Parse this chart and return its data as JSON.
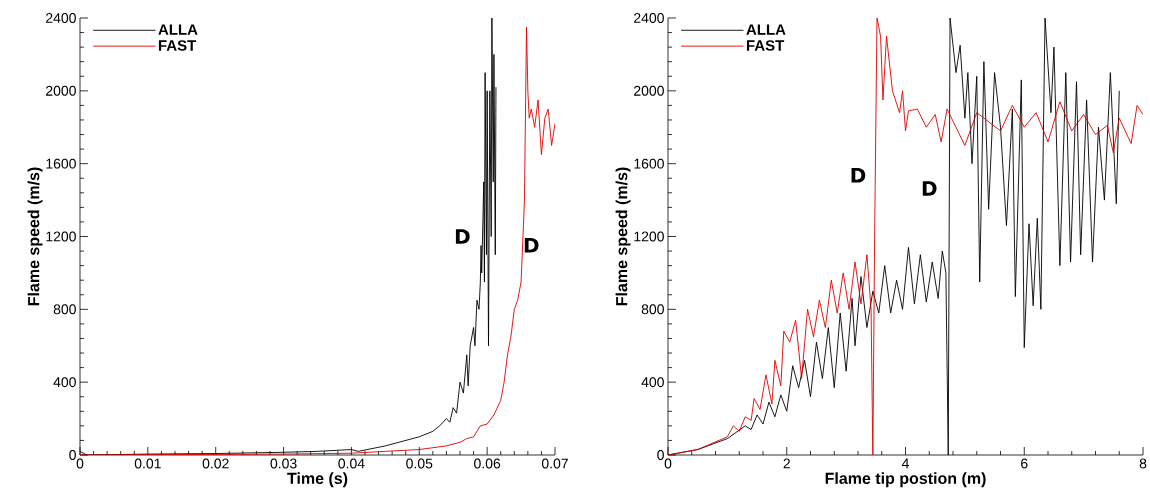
{
  "chart_data": [
    {
      "type": "line",
      "xlabel": "Time (s)",
      "ylabel": "Flame speed (m/s)",
      "xlim": [
        0,
        0.07
      ],
      "ylim": [
        0,
        2400
      ],
      "xticks": [
        0,
        0.01,
        0.02,
        0.03,
        0.04,
        0.05,
        0.06,
        0.07
      ],
      "yticks": [
        0,
        400,
        800,
        1200,
        1600,
        2000,
        2400
      ],
      "legend": "top left",
      "grid": false,
      "annotations": [
        "D",
        "D"
      ],
      "series": [
        {
          "name": "ALLA",
          "color": "#000000",
          "x": [
            0,
            0.001,
            0.01,
            0.02,
            0.03,
            0.035,
            0.04,
            0.041,
            0.045,
            0.047,
            0.05,
            0.052,
            0.053,
            0.054,
            0.0545,
            0.055,
            0.0555,
            0.056,
            0.0565,
            0.057,
            0.0572,
            0.0575,
            0.058,
            0.0582,
            0.0585,
            0.0588,
            0.059,
            0.0591,
            0.0592,
            0.0595,
            0.0596,
            0.0597,
            0.0599,
            0.06,
            0.0602,
            0.0604,
            0.0606,
            0.0607,
            0.0609,
            0.061,
            0.0612,
            0.0613
          ],
          "values": [
            20,
            0,
            5,
            8,
            15,
            20,
            30,
            20,
            50,
            70,
            100,
            130,
            160,
            200,
            180,
            260,
            230,
            400,
            340,
            550,
            380,
            600,
            700,
            600,
            850,
            800,
            950,
            1150,
            1000,
            1500,
            950,
            2100,
            1100,
            2000,
            600,
            2000,
            1200,
            2400,
            1500,
            2200,
            1100,
            2020
          ]
        },
        {
          "name": "FAST",
          "color": "#e00000",
          "x": [
            0,
            0.03,
            0.04,
            0.045,
            0.05,
            0.052,
            0.054,
            0.056,
            0.057,
            0.058,
            0.059,
            0.06,
            0.061,
            0.062,
            0.0625,
            0.063,
            0.0635,
            0.064,
            0.0645,
            0.065,
            0.0655,
            0.0658,
            0.066,
            0.0662,
            0.0665,
            0.067,
            0.0675,
            0.068,
            0.0685,
            0.069,
            0.0695,
            0.07
          ],
          "values": [
            0,
            5,
            10,
            20,
            30,
            40,
            50,
            70,
            90,
            100,
            160,
            170,
            220,
            300,
            400,
            550,
            650,
            800,
            850,
            950,
            1400,
            2350,
            2000,
            1850,
            1900,
            1800,
            1950,
            1650,
            1850,
            1900,
            1700,
            1820
          ]
        }
      ]
    },
    {
      "type": "line",
      "xlabel": "Flame tip postion (m)",
      "ylabel": "Flame speed (m/s)",
      "xlim": [
        0,
        8
      ],
      "ylim": [
        0,
        2400
      ],
      "xticks": [
        0,
        2,
        4,
        6,
        8
      ],
      "yticks": [
        0,
        400,
        800,
        1200,
        1600,
        2000,
        2400
      ],
      "legend": "top left",
      "grid": false,
      "annotations": [
        "D",
        "D"
      ],
      "series": [
        {
          "name": "ALLA",
          "color": "#000000",
          "x": [
            0,
            0.5,
            1.0,
            1.3,
            1.4,
            1.5,
            1.6,
            1.7,
            1.8,
            1.9,
            2.0,
            2.1,
            2.2,
            2.3,
            2.4,
            2.5,
            2.6,
            2.7,
            2.8,
            2.9,
            3.0,
            3.1,
            3.15,
            3.25,
            3.35,
            3.45,
            3.55,
            3.65,
            3.75,
            3.85,
            3.95,
            4.05,
            4.15,
            4.25,
            4.35,
            4.45,
            4.55,
            4.62,
            4.68,
            4.72,
            4.75,
            4.85,
            4.92,
            5.0,
            5.05,
            5.12,
            5.2,
            5.25,
            5.32,
            5.4,
            5.5,
            5.6,
            5.7,
            5.8,
            5.85,
            5.95,
            6.0,
            6.08,
            6.15,
            6.22,
            6.28,
            6.35,
            6.45,
            6.5,
            6.6,
            6.7,
            6.78,
            6.88,
            6.95,
            7.05,
            7.15,
            7.25,
            7.35,
            7.45,
            7.55,
            7.6
          ],
          "values": [
            0,
            30,
            90,
            160,
            140,
            220,
            170,
            290,
            210,
            330,
            240,
            490,
            370,
            520,
            320,
            620,
            420,
            700,
            370,
            780,
            460,
            860,
            600,
            980,
            700,
            900,
            780,
            1040,
            780,
            960,
            800,
            1140,
            830,
            1100,
            840,
            1060,
            860,
            1120,
            1000,
            0,
            2400,
            2100,
            2250,
            1850,
            2100,
            1600,
            2080,
            950,
            2160,
            1350,
            2100,
            1800,
            1260,
            1900,
            870,
            2060,
            590,
            1270,
            820,
            1300,
            800,
            2400,
            1880,
            2240,
            1040,
            2100,
            1060,
            2050,
            1100,
            1950,
            1060,
            1800,
            1400,
            2100,
            1380,
            2000
          ]
        },
        {
          "name": "FAST",
          "color": "#e00000",
          "x": [
            0,
            0.5,
            1.0,
            1.1,
            1.2,
            1.3,
            1.4,
            1.45,
            1.55,
            1.65,
            1.75,
            1.8,
            1.9,
            1.95,
            2.05,
            2.15,
            2.25,
            2.35,
            2.45,
            2.55,
            2.65,
            2.75,
            2.85,
            2.95,
            3.05,
            3.15,
            3.25,
            3.35,
            3.42,
            3.45,
            3.48,
            3.52,
            3.58,
            3.62,
            3.68,
            3.78,
            3.9,
            3.95,
            4.0,
            4.05,
            4.2,
            4.35,
            4.5,
            4.6,
            4.7,
            4.85,
            5.0,
            5.2,
            5.4,
            5.6,
            5.8,
            6.0,
            6.2,
            6.4,
            6.6,
            6.8,
            7.0,
            7.2,
            7.4,
            7.5,
            7.6,
            7.8,
            7.9,
            8.0
          ],
          "values": [
            0,
            30,
            100,
            160,
            130,
            210,
            190,
            310,
            250,
            440,
            280,
            520,
            380,
            680,
            620,
            740,
            420,
            800,
            650,
            850,
            700,
            960,
            780,
            1000,
            800,
            1060,
            830,
            1100,
            800,
            0,
            1200,
            2400,
            2300,
            1950,
            2300,
            2000,
            1880,
            2000,
            1780,
            1890,
            1900,
            1800,
            1870,
            1720,
            1900,
            1800,
            1700,
            1880,
            1830,
            1780,
            1920,
            1800,
            1880,
            1720,
            1940,
            1780,
            1870,
            1760,
            1810,
            1660,
            1850,
            1710,
            1920,
            1870
          ]
        }
      ]
    }
  ]
}
